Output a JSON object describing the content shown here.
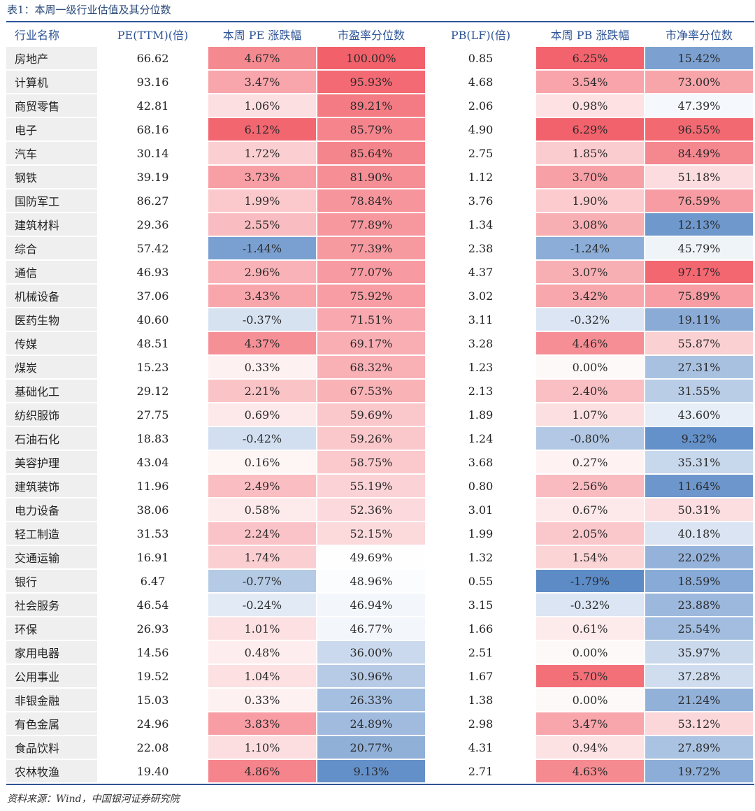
{
  "title": "表1：本周一级行业估值及其分位数",
  "columns": [
    "行业名称",
    "PE(TTM)(倍)",
    "本周 PE 涨跌幅",
    "市盈率分位数",
    "PB(LF)(倍)",
    "本周 PB 涨跌幅",
    "市净率分位数"
  ],
  "rows": [
    [
      "房地产",
      "66.62",
      "4.67%",
      "100.00%",
      "0.85",
      "6.25%",
      "15.42%"
    ],
    [
      "计算机",
      "93.16",
      "3.47%",
      "95.93%",
      "4.68",
      "3.54%",
      "73.00%"
    ],
    [
      "商贸零售",
      "42.81",
      "1.06%",
      "89.21%",
      "2.06",
      "0.98%",
      "47.39%"
    ],
    [
      "电子",
      "68.16",
      "6.12%",
      "85.79%",
      "4.90",
      "6.29%",
      "96.55%"
    ],
    [
      "汽车",
      "30.14",
      "1.72%",
      "85.64%",
      "2.75",
      "1.85%",
      "84.49%"
    ],
    [
      "钢铁",
      "39.19",
      "3.73%",
      "81.90%",
      "1.12",
      "3.70%",
      "51.18%"
    ],
    [
      "国防军工",
      "86.27",
      "1.99%",
      "78.84%",
      "3.76",
      "1.90%",
      "76.59%"
    ],
    [
      "建筑材料",
      "29.36",
      "2.55%",
      "77.89%",
      "1.34",
      "3.08%",
      "12.13%"
    ],
    [
      "综合",
      "57.42",
      "-1.44%",
      "77.39%",
      "2.38",
      "-1.24%",
      "45.79%"
    ],
    [
      "通信",
      "46.93",
      "2.96%",
      "77.07%",
      "4.37",
      "3.07%",
      "97.17%"
    ],
    [
      "机械设备",
      "37.06",
      "3.43%",
      "75.92%",
      "3.02",
      "3.42%",
      "75.89%"
    ],
    [
      "医药生物",
      "40.60",
      "-0.37%",
      "71.51%",
      "3.11",
      "-0.32%",
      "19.11%"
    ],
    [
      "传媒",
      "48.51",
      "4.37%",
      "69.17%",
      "3.28",
      "4.46%",
      "55.87%"
    ],
    [
      "煤炭",
      "15.23",
      "0.33%",
      "68.32%",
      "1.23",
      "0.00%",
      "27.31%"
    ],
    [
      "基础化工",
      "29.12",
      "2.21%",
      "67.53%",
      "2.13",
      "2.40%",
      "31.55%"
    ],
    [
      "纺织服饰",
      "27.75",
      "0.69%",
      "59.69%",
      "1.89",
      "1.07%",
      "43.60%"
    ],
    [
      "石油石化",
      "18.83",
      "-0.42%",
      "59.26%",
      "1.24",
      "-0.80%",
      "9.32%"
    ],
    [
      "美容护理",
      "43.04",
      "0.16%",
      "58.75%",
      "3.68",
      "0.27%",
      "35.31%"
    ],
    [
      "建筑装饰",
      "11.96",
      "2.49%",
      "55.19%",
      "0.80",
      "2.56%",
      "11.64%"
    ],
    [
      "电力设备",
      "38.06",
      "0.58%",
      "52.36%",
      "3.01",
      "0.67%",
      "50.31%"
    ],
    [
      "轻工制造",
      "31.53",
      "2.24%",
      "52.15%",
      "1.99",
      "2.05%",
      "40.18%"
    ],
    [
      "交通运输",
      "16.91",
      "1.74%",
      "49.69%",
      "1.32",
      "1.54%",
      "22.02%"
    ],
    [
      "银行",
      "6.47",
      "-0.77%",
      "48.96%",
      "0.55",
      "-1.79%",
      "18.59%"
    ],
    [
      "社会服务",
      "46.54",
      "-0.24%",
      "46.94%",
      "3.15",
      "-0.32%",
      "23.88%"
    ],
    [
      "环保",
      "26.93",
      "1.01%",
      "46.77%",
      "1.66",
      "0.61%",
      "25.54%"
    ],
    [
      "家用电器",
      "14.56",
      "0.48%",
      "36.00%",
      "2.51",
      "0.00%",
      "35.97%"
    ],
    [
      "公用事业",
      "19.52",
      "1.04%",
      "30.96%",
      "1.67",
      "5.70%",
      "37.28%"
    ],
    [
      "非银金融",
      "15.03",
      "0.33%",
      "26.33%",
      "1.38",
      "0.00%",
      "21.24%"
    ],
    [
      "有色金属",
      "24.96",
      "3.83%",
      "24.89%",
      "2.98",
      "3.47%",
      "53.12%"
    ],
    [
      "食品饮料",
      "22.08",
      "1.10%",
      "20.77%",
      "4.31",
      "0.94%",
      "27.89%"
    ],
    [
      "农林牧渔",
      "19.40",
      "4.86%",
      "9.13%",
      "2.71",
      "4.63%",
      "19.72%"
    ]
  ],
  "footnote": "资料来源：Wind，中国银河证券研究院",
  "colors": {
    "header_text": "#2f5597",
    "rule": "#2f5597",
    "hot": "#f2606a",
    "cold": "#5b8ac6",
    "name_bg": "#efefef"
  }
}
